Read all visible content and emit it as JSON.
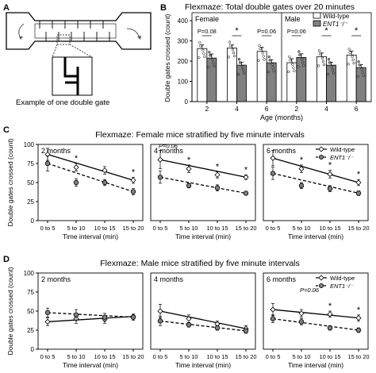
{
  "panel_letters": {
    "a": "A",
    "b": "B",
    "c": "C",
    "d": "D"
  },
  "maze": {
    "caption": "Example of one double gate"
  },
  "chart_data": [
    {
      "id": "B",
      "type": "bar",
      "title": "Flexmaze: Total double gates over 20 minutes",
      "ylabel": "Double gates crossed (count)",
      "xlabel": "Age (months)",
      "ylim": [
        0,
        400
      ],
      "yticks": [
        "0",
        "100",
        "200",
        "300",
        "400"
      ],
      "legend": [
        "Wild-type",
        "ENT1⁻/⁻"
      ],
      "colors": {
        "wild_type": "#ffffff",
        "ent1": "#808080"
      },
      "groups": [
        {
          "label": "Female",
          "categories": [
            "2",
            "4",
            "6"
          ],
          "series": [
            {
              "name": "Wild-type",
              "values": [
                262,
                265,
                248
              ],
              "errors": [
                18,
                15,
                20
              ]
            },
            {
              "name": "ENT1⁻/⁻",
              "values": [
                215,
                180,
                192
              ],
              "errors": [
                20,
                15,
                15
              ]
            }
          ],
          "annotations": [
            "P=0.08",
            "*",
            "P=0.06"
          ]
        },
        {
          "label": "Male",
          "categories": [
            "2",
            "4",
            "6"
          ],
          "series": [
            {
              "name": "Wild-type",
              "values": [
                192,
                222,
                230
              ],
              "errors": [
                20,
                18,
                20
              ]
            },
            {
              "name": "ENT1⁻/⁻",
              "values": [
                218,
                180,
                168
              ],
              "errors": [
                18,
                15,
                15
              ]
            }
          ],
          "annotations": [
            "P=0.06",
            "*",
            "*"
          ]
        }
      ]
    },
    {
      "id": "C",
      "type": "line",
      "title": "Flexmaze: Female mice stratified by five minute intervals",
      "ylabel": "Double gates crossed (count)",
      "xlabel": "Time interval (min)",
      "categories": [
        "0 to 5",
        "5 to 10",
        "10 to 15",
        "15 to 20"
      ],
      "ylim": [
        0,
        100
      ],
      "yticks": [
        "0",
        "25",
        "50",
        "75",
        "100"
      ],
      "legend": [
        "Wild-type",
        "ENT1⁻/⁻"
      ],
      "subplots": [
        {
          "title": "2 months",
          "series": [
            {
              "name": "Wild-type",
              "values": [
                87,
                70,
                66,
                53
              ],
              "errors": [
                8,
                5,
                5,
                4
              ]
            },
            {
              "name": "ENT1⁻/⁻",
              "values": [
                75,
                50,
                50,
                38
              ],
              "errors": [
                10,
                5,
                4,
                4
              ]
            }
          ],
          "annotations": [
            {
              "i": 1,
              "text": "*"
            },
            {
              "i": 3,
              "text": "*"
            }
          ]
        },
        {
          "title": "4 months",
          "series": [
            {
              "name": "Wild-type",
              "values": [
                80,
                68,
                60,
                57
              ],
              "errors": [
                12,
                5,
                4,
                3
              ]
            },
            {
              "name": "ENT1⁻/⁻",
              "values": [
                57,
                46,
                43,
                36
              ],
              "errors": [
                8,
                3,
                4,
                2
              ]
            }
          ],
          "annotations": [
            {
              "i": 0,
              "text": "P=0.06"
            },
            {
              "i": 1,
              "text": "*"
            },
            {
              "i": 2,
              "text": "*"
            },
            {
              "i": 3,
              "text": "*"
            }
          ]
        },
        {
          "title": "6 months",
          "series": [
            {
              "name": "Wild-type",
              "values": [
                82,
                68,
                61,
                50
              ],
              "errors": [
                10,
                5,
                5,
                4
              ]
            },
            {
              "name": "ENT1⁻/⁻",
              "values": [
                62,
                46,
                42,
                36
              ],
              "errors": [
                8,
                4,
                4,
                3
              ]
            }
          ],
          "annotations": [
            {
              "i": 1,
              "text": "*"
            },
            {
              "i": 2,
              "text": "*"
            },
            {
              "i": 3,
              "text": "*"
            }
          ]
        }
      ]
    },
    {
      "id": "D",
      "type": "line",
      "title": "Flexmaze: Male mice stratified by five minute intervals",
      "ylabel": "Double gates crossed (count)",
      "xlabel": "Time interval (min)",
      "categories": [
        "0 to 5",
        "5 to 10",
        "10 to 15",
        "15 to 20"
      ],
      "ylim": [
        0,
        100
      ],
      "yticks": [
        "0",
        "25",
        "50",
        "75",
        "100"
      ],
      "legend": [
        "Wild-type",
        "ENT1⁻/⁻"
      ],
      "subplots": [
        {
          "title": "2 months",
          "series": [
            {
              "name": "Wild-type",
              "values": [
                36,
                40,
                39,
                43
              ],
              "errors": [
                5,
                6,
                5,
                3
              ]
            },
            {
              "name": "ENT1⁻/⁻",
              "values": [
                48,
                45,
                42,
                42
              ],
              "errors": [
                6,
                7,
                5,
                4
              ]
            }
          ],
          "annotations": []
        },
        {
          "title": "4 months",
          "series": [
            {
              "name": "Wild-type",
              "values": [
                50,
                40,
                33,
                27
              ],
              "errors": [
                9,
                5,
                4,
                4
              ]
            },
            {
              "name": "ENT1⁻/⁻",
              "values": [
                37,
                32,
                28,
                24
              ],
              "errors": [
                6,
                3,
                3,
                3
              ]
            }
          ],
          "annotations": []
        },
        {
          "title": "6 months",
          "series": [
            {
              "name": "Wild-type",
              "values": [
                52,
                47,
                46,
                41
              ],
              "errors": [
                8,
                5,
                4,
                4
              ]
            },
            {
              "name": "ENT1⁻/⁻",
              "values": [
                40,
                36,
                28,
                25
              ],
              "errors": [
                5,
                4,
                3,
                3
              ]
            }
          ],
          "annotations": [
            {
              "i": 1,
              "text": "P=0.06"
            },
            {
              "i": 2,
              "text": "*"
            },
            {
              "i": 3,
              "text": "*"
            }
          ]
        }
      ]
    }
  ]
}
